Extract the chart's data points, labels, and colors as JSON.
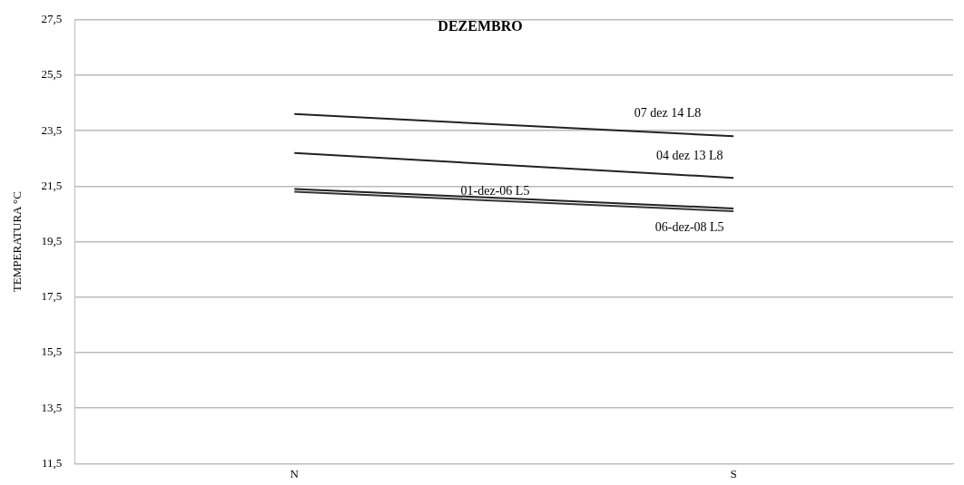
{
  "chart_data": {
    "type": "line",
    "title": "DEZEMBRO",
    "ylabel": "TEMPERATURA °C",
    "categories": [
      "N",
      "S"
    ],
    "series": [
      {
        "name": "07 dez 14 L8",
        "color": "#222222",
        "values": [
          24.1,
          23.3
        ]
      },
      {
        "name": "04 dez 13 L8",
        "color": "#222222",
        "values": [
          22.7,
          21.8
        ]
      },
      {
        "name": "01-dez-06 L5",
        "color": "#222222",
        "values": [
          21.4,
          20.7
        ]
      },
      {
        "name": "06-dez-08 L5",
        "color": "#333333",
        "values": [
          21.3,
          20.6
        ]
      }
    ],
    "ylim": [
      11.5,
      27.5
    ],
    "yticks": [
      {
        "value": 11.5,
        "label": "11,5"
      },
      {
        "value": 13.5,
        "label": "13,5"
      },
      {
        "value": 15.5,
        "label": "15,5"
      },
      {
        "value": 17.5,
        "label": "17,5"
      },
      {
        "value": 19.5,
        "label": "19,5"
      },
      {
        "value": 21.5,
        "label": "21,5"
      },
      {
        "value": 23.5,
        "label": "23,5"
      },
      {
        "value": 25.5,
        "label": "25,5"
      },
      {
        "value": 27.5,
        "label": "27,5"
      }
    ],
    "grid": "y",
    "legend": false,
    "marker": "none",
    "line_style": "solid"
  }
}
